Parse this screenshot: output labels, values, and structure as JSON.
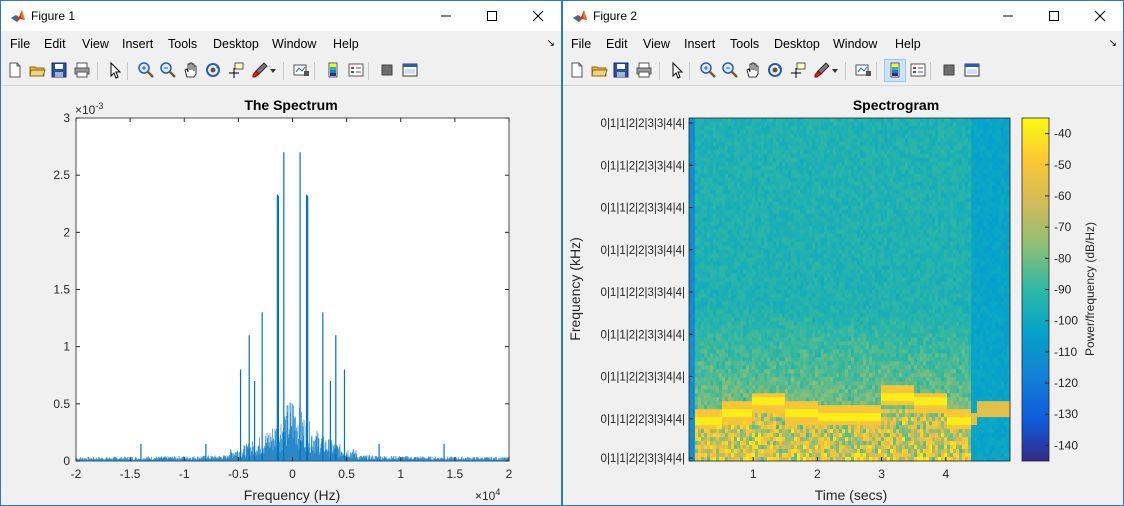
{
  "windows": [
    {
      "title": "Figure 1",
      "menus": [
        "File",
        "Edit",
        "View",
        "Insert",
        "Tools",
        "Desktop",
        "Window",
        "Help"
      ],
      "plot": {
        "title": "The Spectrum",
        "xlabel": "Frequency (Hz)",
        "x_exponent": "×10",
        "x_exponent_power": "4",
        "y_exponent": "×10",
        "y_exponent_power": "-3",
        "xticks": [
          "-2",
          "-1.5",
          "-1",
          "-0.5",
          "0",
          "0.5",
          "1",
          "1.5",
          "2"
        ],
        "yticks": [
          "0",
          "0.5",
          "1",
          "1.5",
          "2",
          "2.5",
          "3"
        ]
      }
    },
    {
      "title": "Figure 2",
      "menus": [
        "File",
        "Edit",
        "View",
        "Insert",
        "Tools",
        "Desktop",
        "Window",
        "Help"
      ],
      "plot": {
        "title": "Spectrogram",
        "xlabel": "Time (secs)",
        "ylabel": "Frequency (kHz)",
        "yticks": [
          "0|1|1|2|2|3|3|4|4|",
          "0|1|1|2|2|3|3|4|4|",
          "0|1|1|2|2|3|3|4|4|",
          "0|1|1|2|2|3|3|4|4|",
          "0|1|1|2|2|3|3|4|4|",
          "0|1|1|2|2|3|3|4|4|",
          "0|1|1|2|2|3|3|4|4|",
          "0|1|1|2|2|3|3|4|4|",
          "0|1|1|2|2|3|3|4|4|"
        ],
        "xticks": [
          "1",
          "2",
          "3",
          "4"
        ],
        "colorbar_label": "Power/frequency (dB/Hz)",
        "colorbar_ticks": [
          "-40",
          "-50",
          "-60",
          "-70",
          "-80",
          "-90",
          "-100",
          "-110",
          "-120",
          "-130",
          "-140"
        ]
      }
    }
  ],
  "colors": {
    "window_border": "#2b79c2",
    "spectrum_line": "#0072bd",
    "figure_bg": "#f0f0f0"
  },
  "toolbar_icons": [
    "new-file-icon",
    "open-folder-icon",
    "save-icon",
    "print-icon",
    "pointer-icon",
    "zoom-in-icon",
    "zoom-out-icon",
    "pan-icon",
    "rotate-icon",
    "data-cursor-icon",
    "brush-icon",
    "link-plot-icon",
    "colorbar-icon",
    "legend-icon",
    "hide-plot-tools-icon",
    "show-plot-tools-icon"
  ],
  "chart_data": [
    {
      "type": "line",
      "title": "The Spectrum",
      "xlabel": "Frequency (Hz)",
      "ylabel": "",
      "xlim": [
        -20000,
        20000
      ],
      "ylim": [
        0,
        0.003
      ],
      "x_scale_note": "x10^4",
      "y_scale_note": "x10^-3",
      "grid": false,
      "peaks": [
        {
          "x": -800,
          "y": 0.0027
        },
        {
          "x": 700,
          "y": 0.0027
        },
        {
          "x": -1400,
          "y": 0.00233
        },
        {
          "x": 1300,
          "y": 0.00233
        },
        {
          "x": -1300,
          "y": 0.00232
        },
        {
          "x": 1400,
          "y": 0.00232
        },
        {
          "x": -2800,
          "y": 0.0013
        },
        {
          "x": 2800,
          "y": 0.0013
        },
        {
          "x": -4000,
          "y": 0.0011
        },
        {
          "x": 4000,
          "y": 0.0011
        },
        {
          "x": -4800,
          "y": 0.0008
        },
        {
          "x": 4800,
          "y": 0.0008
        },
        {
          "x": -3500,
          "y": 0.0007
        },
        {
          "x": 3500,
          "y": 0.0007
        },
        {
          "x": -14000,
          "y": 0.00015
        },
        {
          "x": 14000,
          "y": 0.00015
        },
        {
          "x": -8000,
          "y": 0.00015
        },
        {
          "x": 8000,
          "y": 0.00015
        }
      ]
    },
    {
      "type": "heatmap",
      "title": "Spectrogram",
      "xlabel": "Time (secs)",
      "ylabel": "Frequency (kHz)",
      "xlim": [
        0,
        5
      ],
      "xticks": [
        1,
        2,
        3,
        4
      ],
      "colorbar": {
        "label": "Power/frequency (dB/Hz)",
        "range": [
          -145,
          -35
        ]
      },
      "dominant_ridge": [
        {
          "t0": 0.0,
          "t1": 0.5,
          "level": 0.88
        },
        {
          "t0": 0.5,
          "t1": 1.0,
          "level": 0.86
        },
        {
          "t0": 1.0,
          "t1": 1.5,
          "level": 0.83
        },
        {
          "t0": 1.5,
          "t1": 2.0,
          "level": 0.86
        },
        {
          "t0": 2.0,
          "t1": 2.5,
          "level": 0.87
        },
        {
          "t0": 2.5,
          "t1": 3.0,
          "level": 0.87
        },
        {
          "t0": 3.0,
          "t1": 3.5,
          "level": 0.81
        },
        {
          "t0": 3.5,
          "t1": 4.0,
          "level": 0.83
        },
        {
          "t0": 4.0,
          "t1": 4.5,
          "level": 0.88
        },
        {
          "t0": 4.5,
          "t1": 5.0,
          "level": 0.85
        }
      ]
    }
  ]
}
